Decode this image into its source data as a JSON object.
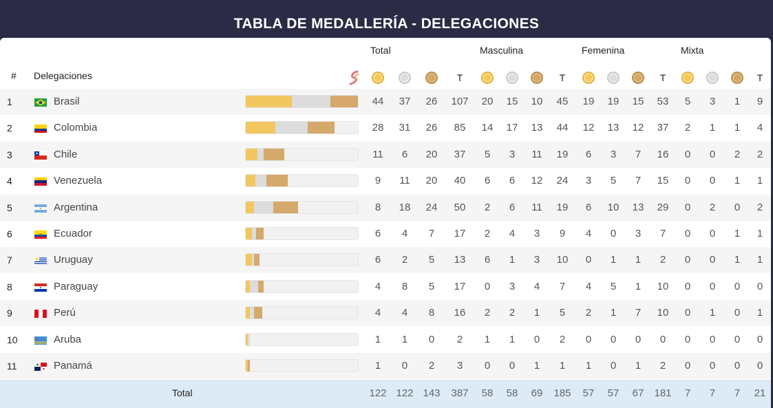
{
  "title": "TABLA DE MEDALLERÍA - DELEGACIONES",
  "header": {
    "rank": "#",
    "delegations": "Delegaciones",
    "groups": [
      "Total",
      "Masculina",
      "Femenina",
      "Mixta"
    ],
    "total_label": "T"
  },
  "colors": {
    "gold": "#f2c75f",
    "silver": "#dcdcdc",
    "bronze": "#d4a96b",
    "title_bg": "#2b2b45",
    "total_row_bg": "#dcebf5"
  },
  "max_total": 107,
  "rows": [
    {
      "rank": "1",
      "country": "Brasil",
      "flag": "brazil",
      "values": [
        "44",
        "37",
        "26",
        "107",
        "20",
        "15",
        "10",
        "45",
        "19",
        "19",
        "15",
        "53",
        "5",
        "3",
        "1",
        "9"
      ]
    },
    {
      "rank": "2",
      "country": "Colombia",
      "flag": "colombia",
      "values": [
        "28",
        "31",
        "26",
        "85",
        "14",
        "17",
        "13",
        "44",
        "12",
        "13",
        "12",
        "37",
        "2",
        "1",
        "1",
        "4"
      ]
    },
    {
      "rank": "3",
      "country": "Chile",
      "flag": "chile",
      "values": [
        "11",
        "6",
        "20",
        "37",
        "5",
        "3",
        "11",
        "19",
        "6",
        "3",
        "7",
        "16",
        "0",
        "0",
        "2",
        "2"
      ]
    },
    {
      "rank": "4",
      "country": "Venezuela",
      "flag": "venezuela",
      "values": [
        "9",
        "11",
        "20",
        "40",
        "6",
        "6",
        "12",
        "24",
        "3",
        "5",
        "7",
        "15",
        "0",
        "0",
        "1",
        "1"
      ]
    },
    {
      "rank": "5",
      "country": "Argentina",
      "flag": "argentina",
      "values": [
        "8",
        "18",
        "24",
        "50",
        "2",
        "6",
        "11",
        "19",
        "6",
        "10",
        "13",
        "29",
        "0",
        "2",
        "0",
        "2"
      ]
    },
    {
      "rank": "6",
      "country": "Ecuador",
      "flag": "ecuador",
      "values": [
        "6",
        "4",
        "7",
        "17",
        "2",
        "4",
        "3",
        "9",
        "4",
        "0",
        "3",
        "7",
        "0",
        "0",
        "1",
        "1"
      ]
    },
    {
      "rank": "7",
      "country": "Uruguay",
      "flag": "uruguay",
      "values": [
        "6",
        "2",
        "5",
        "13",
        "6",
        "1",
        "3",
        "10",
        "0",
        "1",
        "1",
        "2",
        "0",
        "0",
        "1",
        "1"
      ]
    },
    {
      "rank": "8",
      "country": "Paraguay",
      "flag": "paraguay",
      "values": [
        "4",
        "8",
        "5",
        "17",
        "0",
        "3",
        "4",
        "7",
        "4",
        "5",
        "1",
        "10",
        "0",
        "0",
        "0",
        "0"
      ]
    },
    {
      "rank": "9",
      "country": "Perú",
      "flag": "peru",
      "values": [
        "4",
        "4",
        "8",
        "16",
        "2",
        "2",
        "1",
        "5",
        "2",
        "1",
        "7",
        "10",
        "0",
        "1",
        "0",
        "1"
      ]
    },
    {
      "rank": "10",
      "country": "Aruba",
      "flag": "aruba",
      "values": [
        "1",
        "1",
        "0",
        "2",
        "1",
        "1",
        "0",
        "2",
        "0",
        "0",
        "0",
        "0",
        "0",
        "0",
        "0",
        "0"
      ]
    },
    {
      "rank": "11",
      "country": "Panamá",
      "flag": "panama",
      "values": [
        "1",
        "0",
        "2",
        "3",
        "0",
        "0",
        "1",
        "1",
        "1",
        "0",
        "1",
        "2",
        "0",
        "0",
        "0",
        "0"
      ]
    }
  ],
  "totals": {
    "label": "Total",
    "values": [
      "122",
      "122",
      "143",
      "387",
      "58",
      "58",
      "69",
      "185",
      "57",
      "57",
      "67",
      "181",
      "7",
      "7",
      "7",
      "21"
    ]
  },
  "icons": {
    "header_logo": "games-logo-icon",
    "medals": [
      "gold-medal-icon",
      "silver-medal-icon",
      "bronze-medal-icon"
    ]
  }
}
